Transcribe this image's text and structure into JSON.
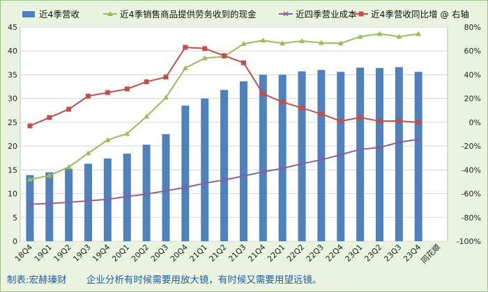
{
  "chart_data": {
    "type": "bar+line",
    "categories": [
      "18Q4",
      "19Q1",
      "19Q2",
      "19Q3",
      "19Q4",
      "20Q1",
      "20Q2",
      "20Q3",
      "20Q4",
      "21Q1",
      "21Q2",
      "21Q3",
      "21Q4",
      "22Q1",
      "22Q2",
      "22Q3",
      "22Q4",
      "23Q1",
      "23Q2",
      "23Q3",
      "23Q4"
    ],
    "x_extra_label": "同花顺",
    "left_axis": {
      "min": 0,
      "max": 45,
      "ticks": [
        0,
        5,
        10,
        15,
        20,
        25,
        30,
        35,
        40,
        45
      ]
    },
    "right_axis": {
      "min": -100,
      "max": 80,
      "unit": "%",
      "ticks": [
        "-100%",
        "-80%",
        "-60%",
        "-40%",
        "-20%",
        "0%",
        "20%",
        "40%",
        "60%",
        "80%"
      ]
    },
    "series": [
      {
        "name": "近4季营收",
        "type": "bar",
        "axis": "left",
        "color": "#4f81bd",
        "values": [
          13.9,
          14.5,
          15.2,
          16.3,
          17.4,
          18.4,
          20.3,
          22.5,
          28.5,
          30.0,
          31.8,
          33.6,
          35.0,
          35.0,
          35.7,
          36.0,
          35.6,
          36.5,
          36.4,
          36.6,
          35.6
        ]
      },
      {
        "name": "近4季销售商品提供劳务收到的现金",
        "type": "line",
        "axis": "left",
        "color": "#9bbb59",
        "marker": "triangle",
        "values": [
          13.0,
          13.8,
          15.6,
          18.5,
          21.3,
          22.6,
          26.2,
          30.2,
          36.4,
          38.5,
          38.8,
          41.5,
          42.2,
          41.6,
          42.1,
          41.7,
          41.6,
          43.0,
          43.6,
          43.0,
          43.6
        ]
      },
      {
        "name": "近四季营业成本",
        "type": "line",
        "axis": "left",
        "color": "#8064a2",
        "marker": "x",
        "values": [
          7.8,
          7.9,
          8.2,
          8.5,
          8.8,
          9.4,
          9.9,
          10.6,
          11.3,
          12.2,
          12.9,
          13.7,
          14.6,
          15.3,
          16.3,
          17.1,
          18.2,
          19.3,
          19.7,
          20.8,
          21.4
        ]
      },
      {
        "name": "近4季营收同比增 @ 右轴",
        "type": "line",
        "axis": "right",
        "color": "#c0504d",
        "marker": "square",
        "values": [
          -3,
          4,
          11,
          22,
          25,
          28,
          34,
          38,
          63,
          62,
          56,
          50,
          24,
          17,
          12,
          7,
          1,
          4,
          1,
          1,
          0
        ]
      }
    ]
  },
  "footer": {
    "credit": "制表:宏赫瑧财",
    "slogan": "企业分析有时候需要用放大镜，有时候又需要用望远镜。"
  }
}
